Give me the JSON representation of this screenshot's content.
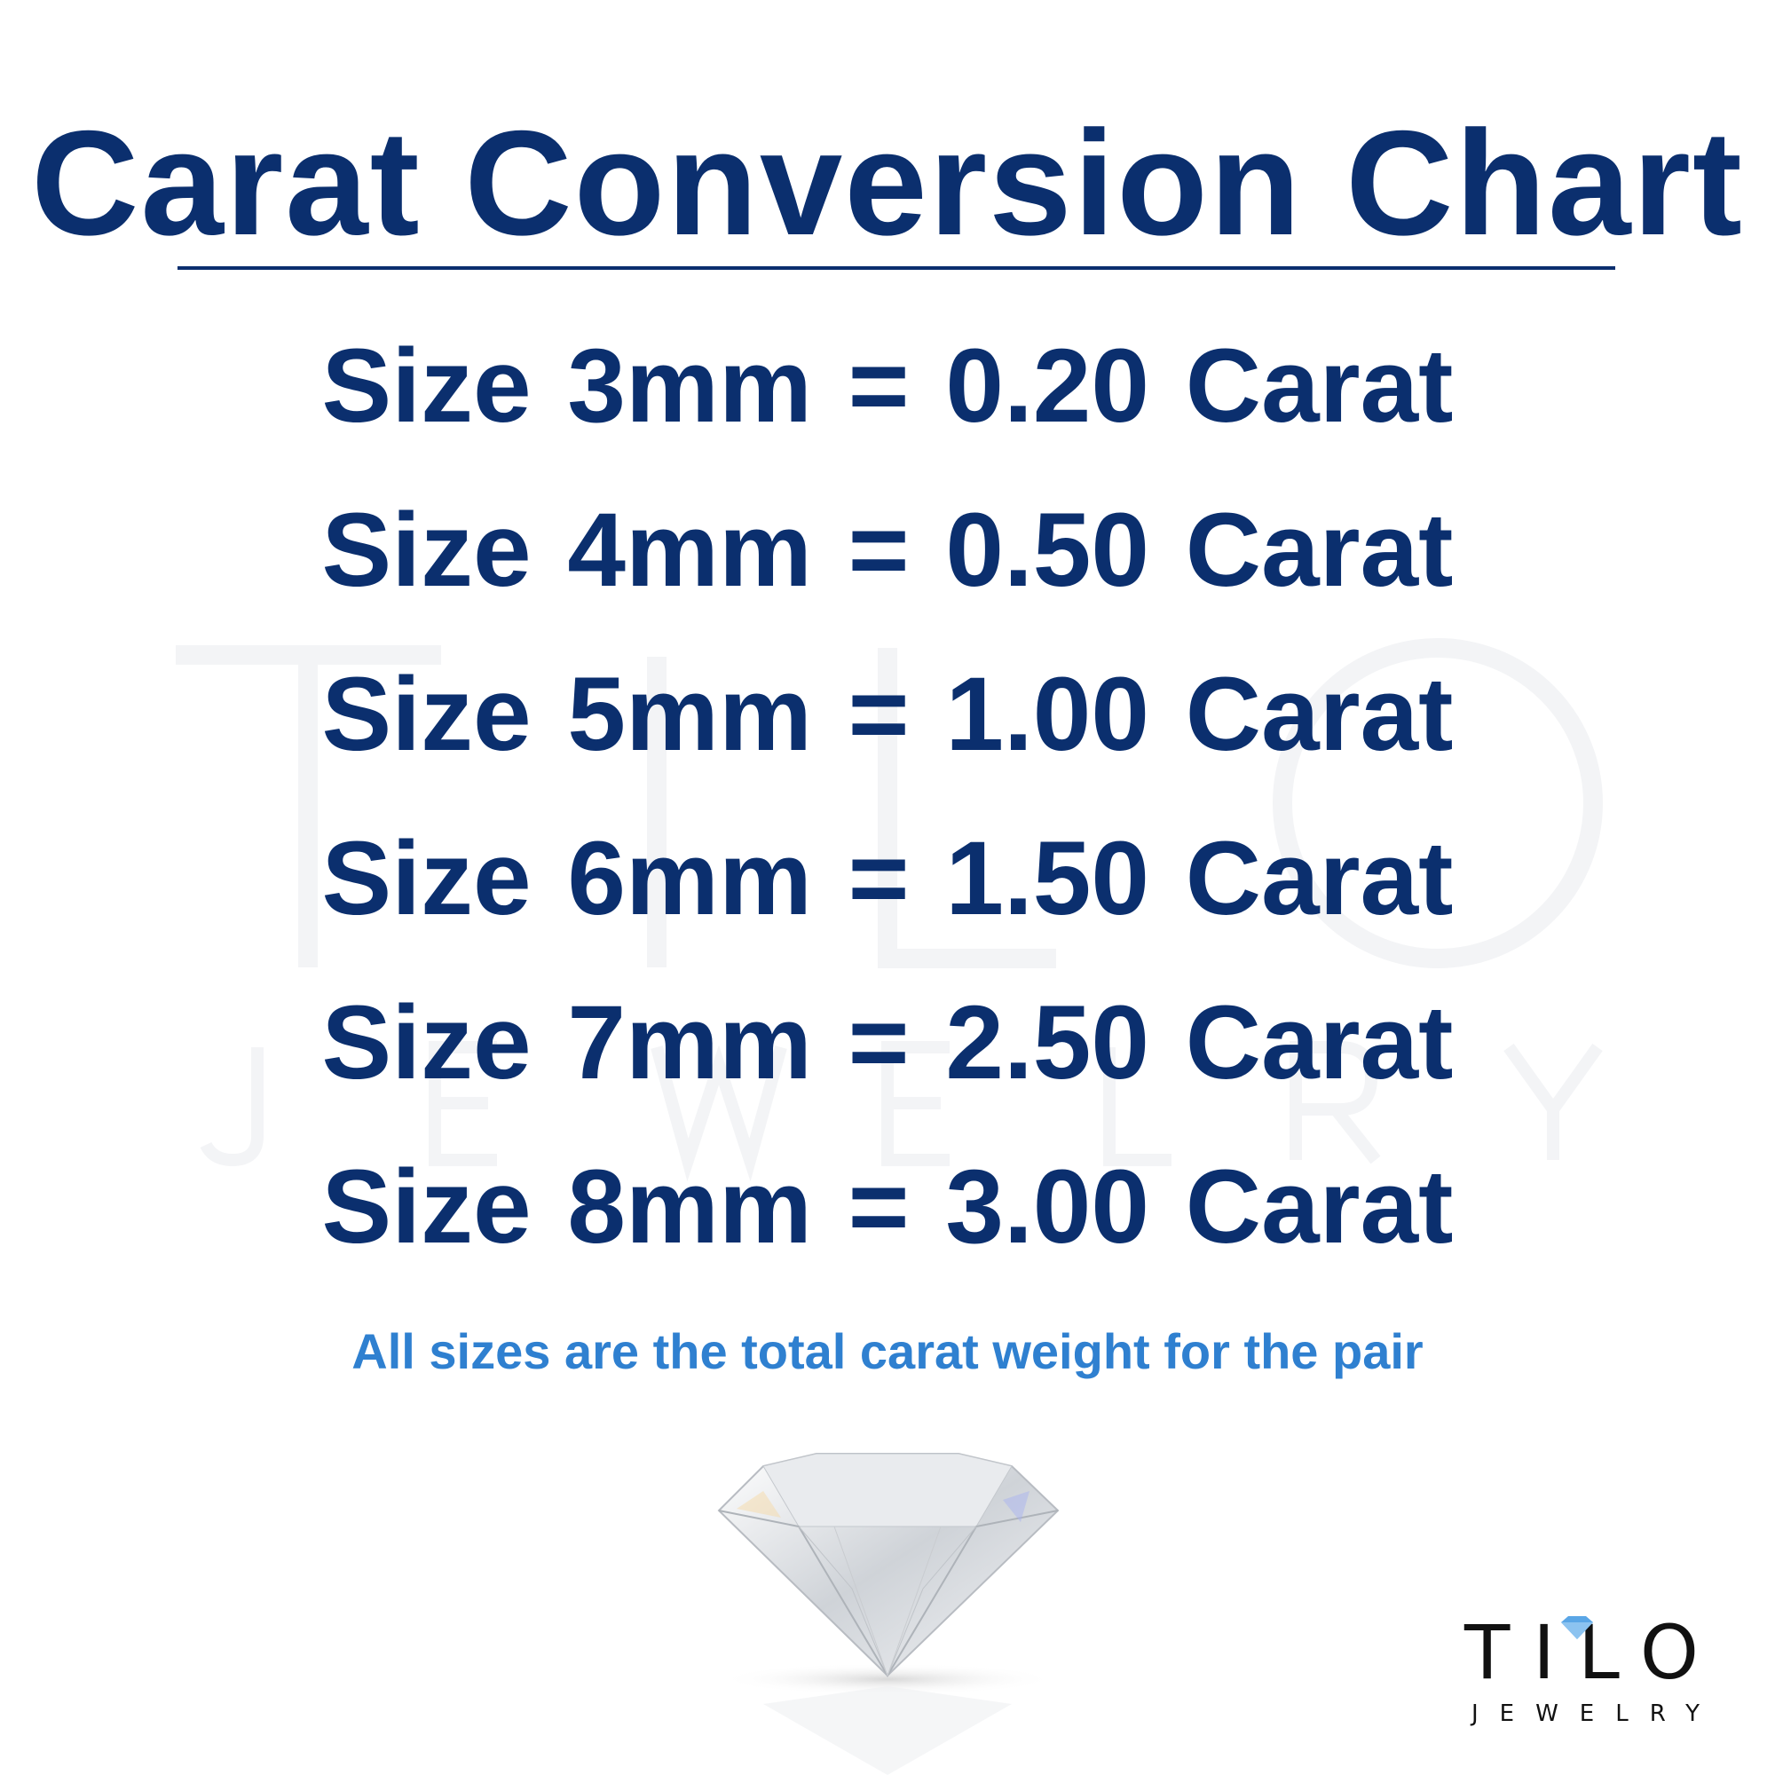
{
  "title": "Carat Conversion Chart",
  "rows": [
    {
      "text": "Size 3mm = 0.20 Carat",
      "size_mm": 3,
      "carat": 0.2
    },
    {
      "text": "Size 4mm = 0.50 Carat",
      "size_mm": 4,
      "carat": 0.5
    },
    {
      "text": "Size 5mm = 1.00 Carat",
      "size_mm": 5,
      "carat": 1.0
    },
    {
      "text": "Size 6mm = 1.50 Carat",
      "size_mm": 6,
      "carat": 1.5
    },
    {
      "text": "Size 7mm = 2.50 Carat",
      "size_mm": 7,
      "carat": 2.5
    },
    {
      "text": "Size 8mm = 3.00 Carat",
      "size_mm": 8,
      "carat": 3.0
    }
  ],
  "note": "All sizes are the total carat weight for the pair",
  "watermark": {
    "main": "TILO",
    "sub": "JEWELRY"
  },
  "logo": {
    "main": "TILO",
    "sub": "JEWELRY"
  },
  "colors": {
    "heading": "#0b2f6e",
    "note": "#2f80d0",
    "logo": "#111111",
    "gem_accent": "#5aa6e6"
  }
}
